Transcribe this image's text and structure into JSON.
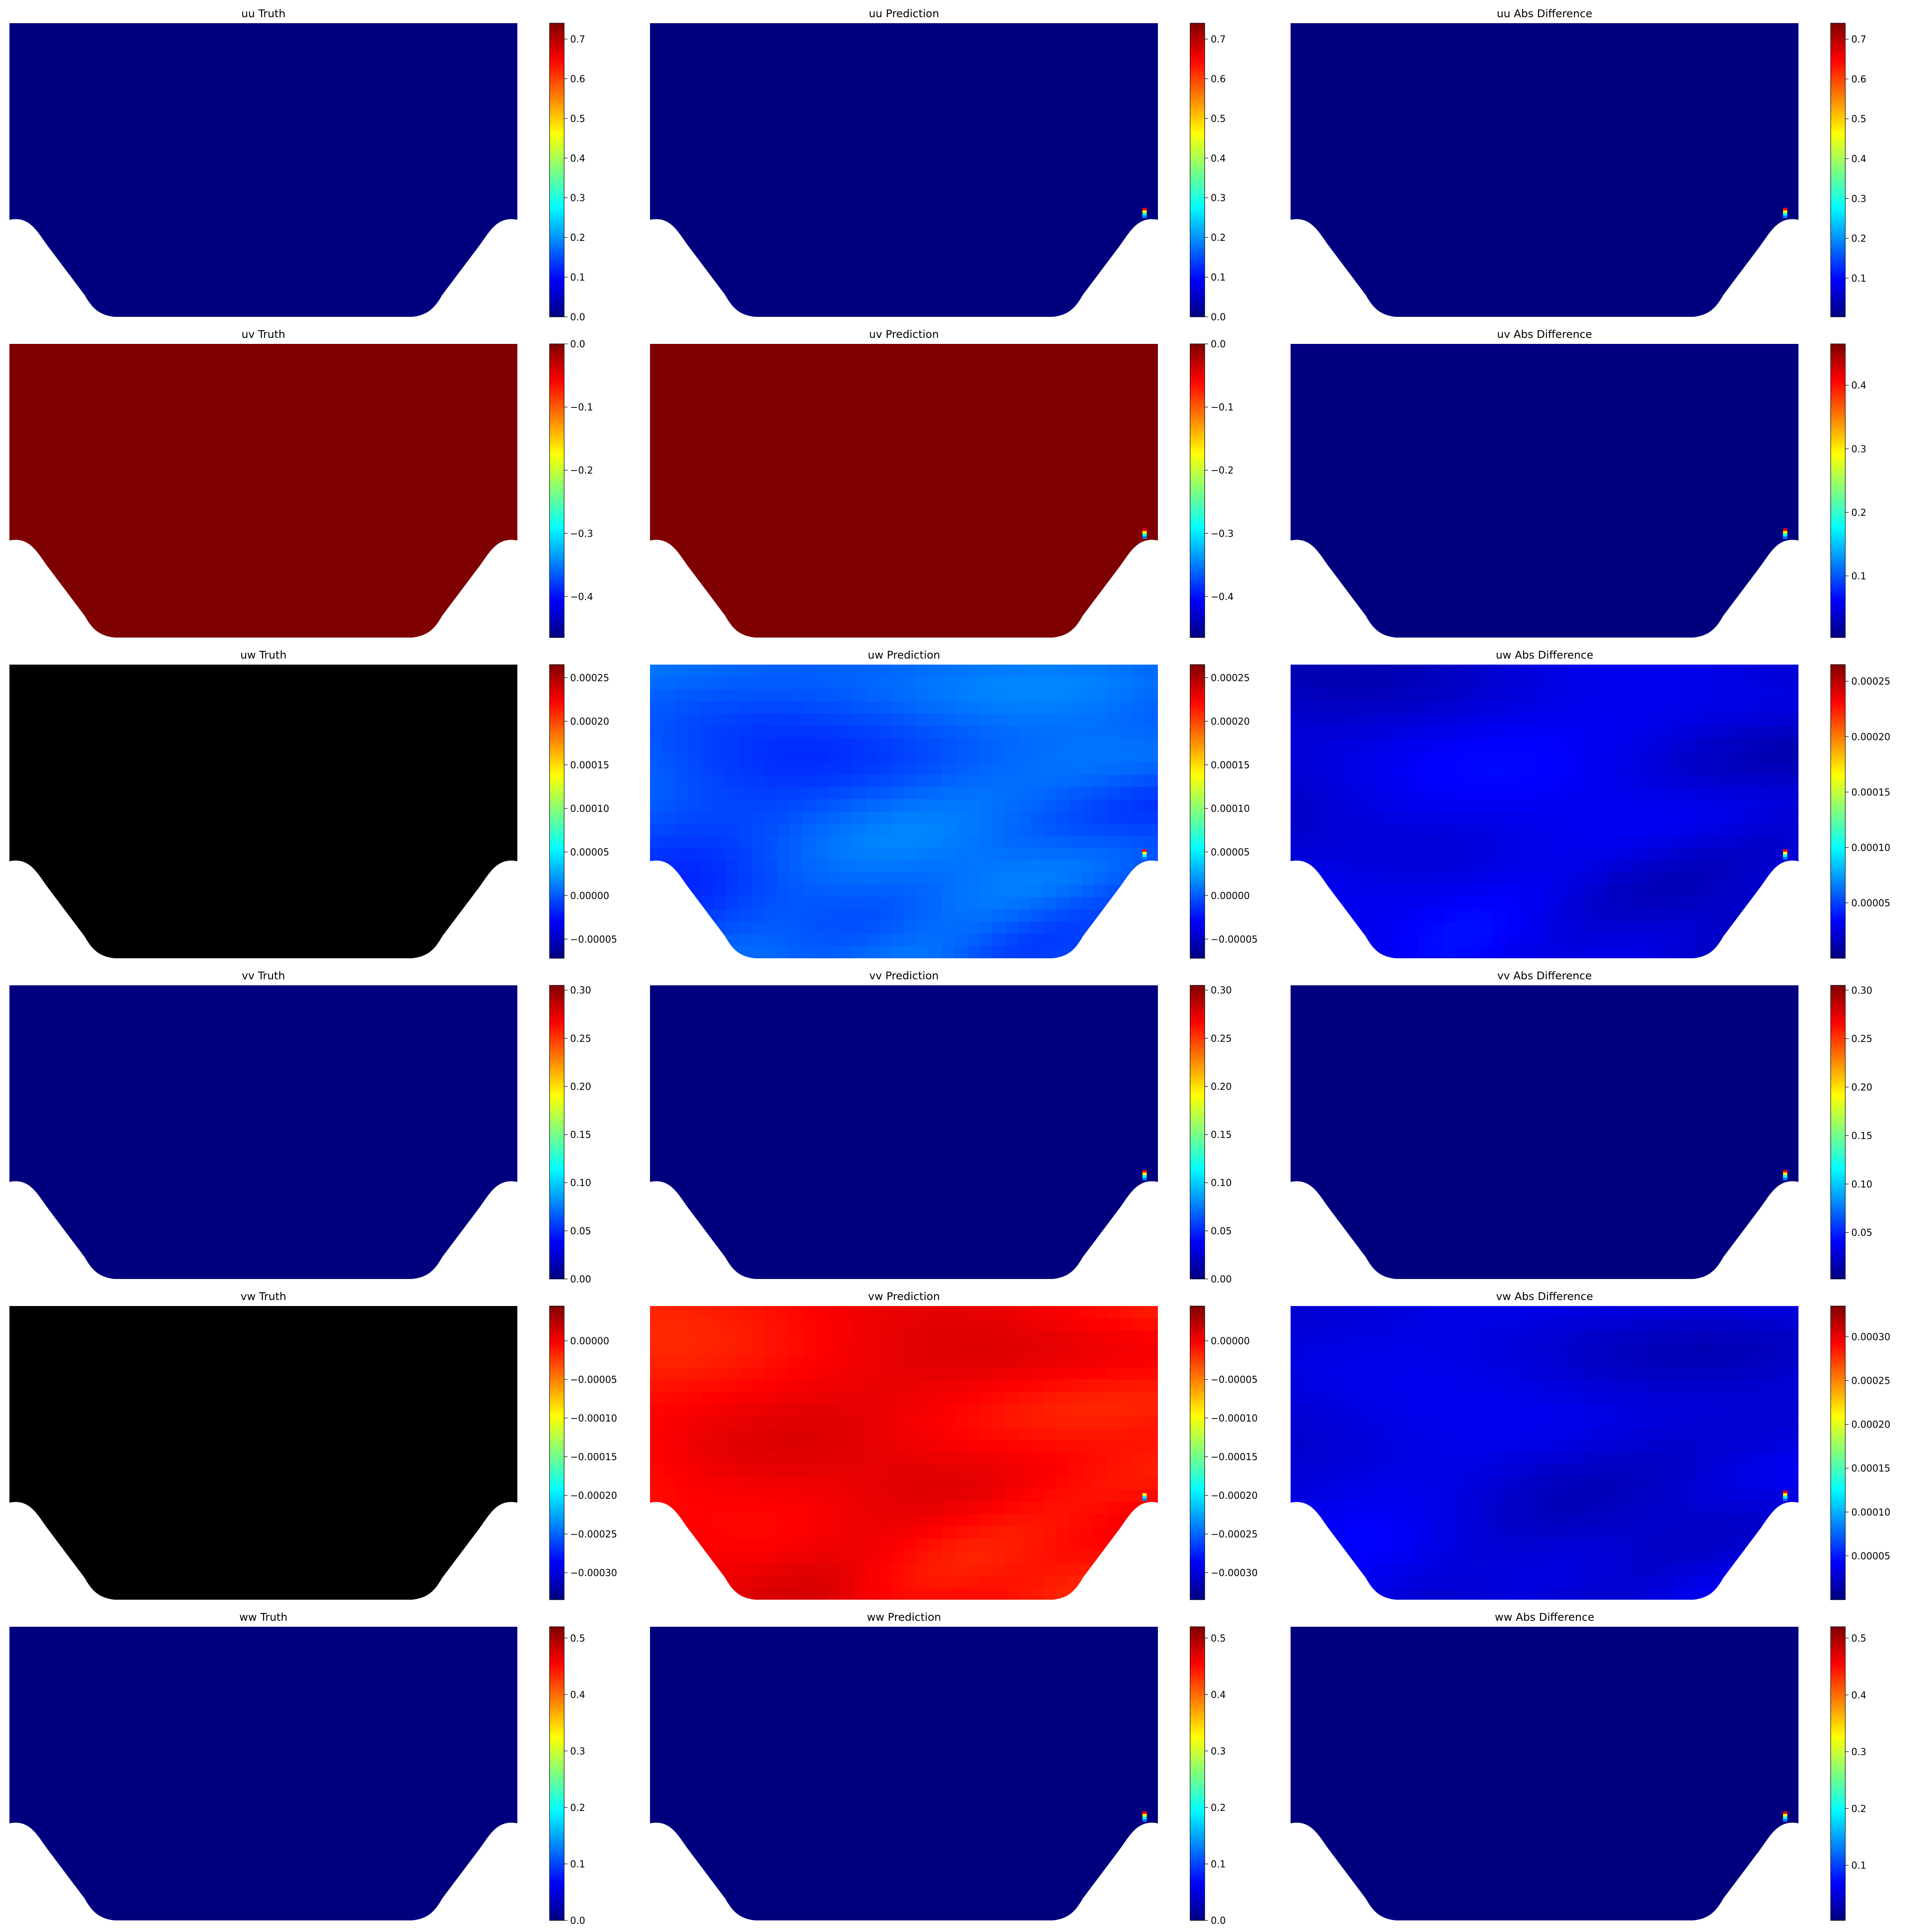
{
  "colormap": [
    "#00007f",
    "#0000ff",
    "#007fff",
    "#00ffff",
    "#7fff7f",
    "#ffff00",
    "#ff7f00",
    "#ff0000",
    "#7f0000"
  ],
  "chart_data": [
    {
      "type": "heatmap",
      "title": "uu Truth",
      "field": "uu",
      "panel": "truth",
      "fill": "uniform",
      "value": 0.0,
      "colorbar": {
        "range": [
          0.0,
          0.74
        ],
        "ticks": [
          0.0,
          0.1,
          0.2,
          0.3,
          0.4,
          0.5,
          0.6,
          0.7
        ],
        "tick_labels": [
          "0.0",
          "0.1",
          "0.2",
          "0.3",
          "0.4",
          "0.5",
          "0.6",
          "0.7"
        ]
      }
    },
    {
      "type": "heatmap",
      "title": "uu Prediction",
      "field": "uu",
      "panel": "prediction",
      "fill": "uniform",
      "value": 0.0,
      "hotspot": "right-wall corner",
      "colorbar": {
        "range": [
          0.0,
          0.74
        ],
        "ticks": [
          0.0,
          0.1,
          0.2,
          0.3,
          0.4,
          0.5,
          0.6,
          0.7
        ],
        "tick_labels": [
          "0.0",
          "0.1",
          "0.2",
          "0.3",
          "0.4",
          "0.5",
          "0.6",
          "0.7"
        ]
      }
    },
    {
      "type": "heatmap",
      "title": "uu Abs Difference",
      "field": "uu",
      "panel": "difference",
      "fill": "uniform",
      "value": 0.003,
      "hotspot": "right-wall corner",
      "colorbar": {
        "range": [
          0.003,
          0.74
        ],
        "ticks": [
          0.1,
          0.2,
          0.3,
          0.4,
          0.5,
          0.6,
          0.7
        ],
        "tick_labels": [
          "0.1",
          "0.2",
          "0.3",
          "0.4",
          "0.5",
          "0.6",
          "0.7"
        ]
      }
    },
    {
      "type": "heatmap",
      "title": "uv Truth",
      "field": "uv",
      "panel": "truth",
      "fill": "uniform",
      "value": 0.0,
      "colorbar": {
        "range": [
          -0.465,
          0.0
        ],
        "ticks": [
          0.0,
          -0.1,
          -0.2,
          -0.3,
          -0.4
        ],
        "tick_labels": [
          "0.0",
          "−0.1",
          "−0.2",
          "−0.3",
          "−0.4"
        ]
      }
    },
    {
      "type": "heatmap",
      "title": "uv Prediction",
      "field": "uv",
      "panel": "prediction",
      "fill": "uniform",
      "value": 0.0,
      "hotspot": "right-wall corner",
      "colorbar": {
        "range": [
          -0.465,
          0.0
        ],
        "ticks": [
          0.0,
          -0.1,
          -0.2,
          -0.3,
          -0.4
        ],
        "tick_labels": [
          "0.0",
          "−0.1",
          "−0.2",
          "−0.3",
          "−0.4"
        ]
      }
    },
    {
      "type": "heatmap",
      "title": "uv Abs Difference",
      "field": "uv",
      "panel": "difference",
      "fill": "uniform",
      "value": 0.003,
      "hotspot": "right-wall corner",
      "colorbar": {
        "range": [
          0.003,
          0.465
        ],
        "ticks": [
          0.1,
          0.2,
          0.3,
          0.4
        ],
        "tick_labels": [
          "0.1",
          "0.2",
          "0.3",
          "0.4"
        ]
      }
    },
    {
      "type": "heatmap",
      "title": "uw Truth",
      "field": "uw",
      "panel": "truth",
      "fill": "black",
      "colorbar": {
        "range": [
          -7.2e-05,
          0.000265
        ],
        "ticks": [
          -5e-05,
          0.0,
          5e-05,
          0.0001,
          0.00015,
          0.0002,
          0.00025
        ],
        "tick_labels": [
          "−0.00005",
          "0.00000",
          "0.00005",
          "0.00010",
          "0.00015",
          "0.00020",
          "0.00025"
        ]
      }
    },
    {
      "type": "heatmap",
      "title": "uw Prediction",
      "field": "uw",
      "panel": "prediction",
      "fill": "field",
      "value": 0.0,
      "variation": 1.8e-05,
      "hotspot": "right-wall corner",
      "colorbar": {
        "range": [
          -7.2e-05,
          0.000265
        ],
        "ticks": [
          -5e-05,
          0.0,
          5e-05,
          0.0001,
          0.00015,
          0.0002,
          0.00025
        ],
        "tick_labels": [
          "−0.00005",
          "0.00000",
          "0.00005",
          "0.00010",
          "0.00015",
          "0.00020",
          "0.00025"
        ]
      }
    },
    {
      "type": "heatmap",
      "title": "uw Abs Difference",
      "field": "uw",
      "panel": "difference",
      "fill": "field",
      "value": 2.5e-05,
      "variation": 1.2e-05,
      "hotspot": "right-wall corner",
      "colorbar": {
        "range": [
          0.0,
          0.000265
        ],
        "ticks": [
          5e-05,
          0.0001,
          0.00015,
          0.0002,
          0.00025
        ],
        "tick_labels": [
          "0.00005",
          "0.00010",
          "0.00015",
          "0.00020",
          "0.00025"
        ]
      }
    },
    {
      "type": "heatmap",
      "title": "vv Truth",
      "field": "vv",
      "panel": "truth",
      "fill": "uniform",
      "value": 0.0,
      "colorbar": {
        "range": [
          0.0,
          0.305
        ],
        "ticks": [
          0.0,
          0.05,
          0.1,
          0.15,
          0.2,
          0.25,
          0.3
        ],
        "tick_labels": [
          "0.00",
          "0.05",
          "0.10",
          "0.15",
          "0.20",
          "0.25",
          "0.30"
        ]
      }
    },
    {
      "type": "heatmap",
      "title": "vv Prediction",
      "field": "vv",
      "panel": "prediction",
      "fill": "uniform",
      "value": 0.0,
      "hotspot": "right-wall corner",
      "colorbar": {
        "range": [
          0.0,
          0.305
        ],
        "ticks": [
          0.0,
          0.05,
          0.1,
          0.15,
          0.2,
          0.25,
          0.3
        ],
        "tick_labels": [
          "0.00",
          "0.05",
          "0.10",
          "0.15",
          "0.20",
          "0.25",
          "0.30"
        ]
      }
    },
    {
      "type": "heatmap",
      "title": "vv Abs Difference",
      "field": "vv",
      "panel": "difference",
      "fill": "uniform",
      "value": 0.002,
      "hotspot": "right-wall corner",
      "colorbar": {
        "range": [
          0.002,
          0.305
        ],
        "ticks": [
          0.05,
          0.1,
          0.15,
          0.2,
          0.25,
          0.3
        ],
        "tick_labels": [
          "0.05",
          "0.10",
          "0.15",
          "0.20",
          "0.25",
          "0.30"
        ]
      }
    },
    {
      "type": "heatmap",
      "title": "vw Truth",
      "field": "vw",
      "panel": "truth",
      "fill": "black",
      "colorbar": {
        "range": [
          -0.000335,
          4.5e-05
        ],
        "ticks": [
          0.0,
          -5e-05,
          -0.0001,
          -0.00015,
          -0.0002,
          -0.00025,
          -0.0003
        ],
        "tick_labels": [
          "0.00000",
          "−0.00005",
          "−0.00010",
          "−0.00015",
          "−0.00020",
          "−0.00025",
          "−0.00030"
        ]
      }
    },
    {
      "type": "heatmap",
      "title": "vw Prediction",
      "field": "vw",
      "panel": "prediction",
      "fill": "field",
      "value": -1.5e-06,
      "variation": 1.7e-05,
      "hotspot": "right-wall corner",
      "colorbar": {
        "range": [
          -0.000335,
          4.5e-05
        ],
        "ticks": [
          0.0,
          -5e-05,
          -0.0001,
          -0.00015,
          -0.0002,
          -0.00025,
          -0.0003
        ],
        "tick_labels": [
          "0.00000",
          "−0.00005",
          "−0.00010",
          "−0.00015",
          "−0.00020",
          "−0.00025",
          "−0.00030"
        ]
      }
    },
    {
      "type": "heatmap",
      "title": "vw Abs Difference",
      "field": "vw",
      "panel": "difference",
      "fill": "field",
      "value": 3e-05,
      "variation": 1.2e-05,
      "hotspot": "right-wall corner",
      "colorbar": {
        "range": [
          0.0,
          0.000335
        ],
        "ticks": [
          5e-05,
          0.0001,
          0.00015,
          0.0002,
          0.00025,
          0.0003
        ],
        "tick_labels": [
          "0.00005",
          "0.00010",
          "0.00015",
          "0.00020",
          "0.00025",
          "0.00030"
        ]
      }
    },
    {
      "type": "heatmap",
      "title": "ww Truth",
      "field": "ww",
      "panel": "truth",
      "fill": "uniform",
      "value": 0.0,
      "colorbar": {
        "range": [
          0.0,
          0.52
        ],
        "ticks": [
          0.0,
          0.1,
          0.2,
          0.3,
          0.4,
          0.5
        ],
        "tick_labels": [
          "0.0",
          "0.1",
          "0.2",
          "0.3",
          "0.4",
          "0.5"
        ]
      }
    },
    {
      "type": "heatmap",
      "title": "ww Prediction",
      "field": "ww",
      "panel": "prediction",
      "fill": "uniform",
      "value": 0.0,
      "hotspot": "right-wall corner",
      "colorbar": {
        "range": [
          0.0,
          0.52
        ],
        "ticks": [
          0.0,
          0.1,
          0.2,
          0.3,
          0.4,
          0.5
        ],
        "tick_labels": [
          "0.0",
          "0.1",
          "0.2",
          "0.3",
          "0.4",
          "0.5"
        ]
      }
    },
    {
      "type": "heatmap",
      "title": "ww Abs Difference",
      "field": "ww",
      "panel": "difference",
      "fill": "uniform",
      "value": 0.003,
      "hotspot": "right-wall corner",
      "colorbar": {
        "range": [
          0.003,
          0.52
        ],
        "ticks": [
          0.1,
          0.2,
          0.3,
          0.4,
          0.5
        ],
        "tick_labels": [
          "0.1",
          "0.2",
          "0.3",
          "0.4",
          "0.5"
        ]
      }
    }
  ]
}
